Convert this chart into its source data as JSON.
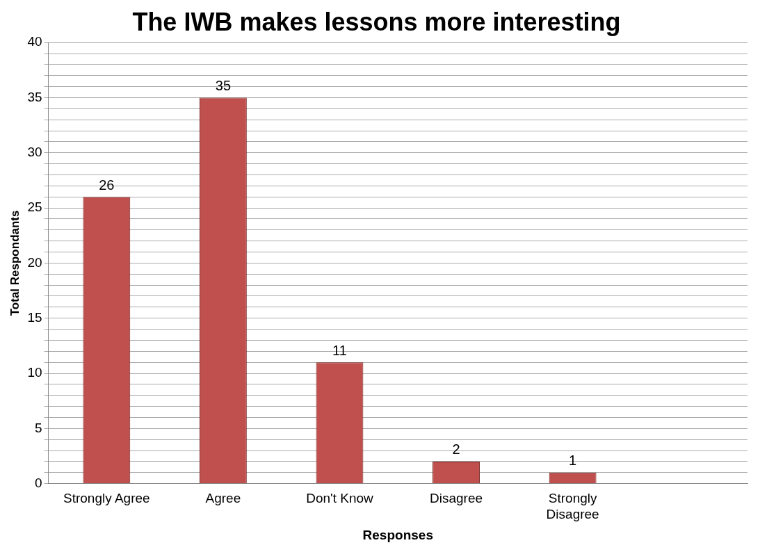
{
  "chart_data": {
    "type": "bar",
    "title": "The IWB makes lessons more interesting",
    "xlabel": "Responses",
    "ylabel": "Total Respondants",
    "categories": [
      "Strongly Agree",
      "Agree",
      "Don't Know",
      "Disagree",
      "Strongly Disagree",
      null
    ],
    "values": [
      26,
      35,
      11,
      2,
      1,
      null
    ],
    "color": "#c0504d",
    "data_labels": true,
    "legend": false,
    "grid": "y",
    "ylim": [
      0,
      40
    ],
    "yticks": [
      0,
      {
        "value": 1,
        "label": null
      },
      {
        "value": 2,
        "label": null
      },
      {
        "value": 3,
        "label": null
      },
      {
        "value": 4,
        "label": null
      },
      5,
      {
        "value": 6,
        "label": null
      },
      {
        "value": 7,
        "label": null
      },
      {
        "value": 8,
        "label": null
      },
      {
        "value": 9,
        "label": null
      },
      10,
      {
        "value": 11,
        "label": null
      },
      {
        "value": 12,
        "label": null
      },
      {
        "value": 13,
        "label": null
      },
      {
        "value": 14,
        "label": null
      },
      15,
      {
        "value": 16,
        "label": null
      },
      {
        "value": 17,
        "label": null
      },
      {
        "value": 18,
        "label": null
      },
      {
        "value": 19,
        "label": null
      },
      20,
      {
        "value": 21,
        "label": null
      },
      {
        "value": 22,
        "label": null
      },
      {
        "value": 23,
        "label": null
      },
      {
        "value": 24,
        "label": null
      },
      25,
      {
        "value": 26,
        "label": null
      },
      {
        "value": 27,
        "label": null
      },
      {
        "value": 28,
        "label": null
      },
      {
        "value": 29,
        "label": null
      },
      30,
      {
        "value": 31,
        "label": null
      },
      {
        "value": 32,
        "label": null
      },
      {
        "value": 33,
        "label": null
      },
      {
        "value": 34,
        "label": null
      },
      35,
      {
        "value": 36,
        "label": null
      },
      {
        "value": 37,
        "label": null
      },
      {
        "value": 38,
        "label": null
      },
      {
        "value": 39,
        "label": null
      },
      40
    ]
  }
}
